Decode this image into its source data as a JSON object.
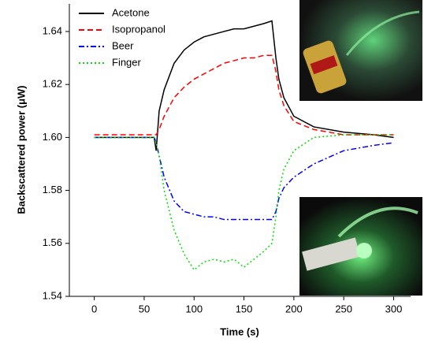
{
  "chart_data": {
    "type": "line",
    "xlabel": "Time (s)",
    "ylabel": "Backscattered power (μW)",
    "x": [
      0,
      20,
      40,
      60,
      62,
      65,
      70,
      80,
      90,
      100,
      110,
      120,
      130,
      140,
      150,
      160,
      170,
      178,
      182,
      185,
      190,
      200,
      220,
      250,
      280,
      300
    ],
    "series": [
      {
        "name": "Acetone",
        "color": "#000000",
        "style": "solid",
        "values": [
          1.6,
          1.6,
          1.6,
          1.6,
          1.595,
          1.61,
          1.618,
          1.628,
          1.633,
          1.636,
          1.638,
          1.639,
          1.64,
          1.641,
          1.641,
          1.642,
          1.643,
          1.644,
          1.63,
          1.622,
          1.615,
          1.608,
          1.604,
          1.602,
          1.601,
          1.6
        ]
      },
      {
        "name": "Isopropanol",
        "color": "#ff0000",
        "style": "dashed",
        "values": [
          1.601,
          1.601,
          1.601,
          1.601,
          1.601,
          1.603,
          1.608,
          1.615,
          1.619,
          1.622,
          1.624,
          1.626,
          1.628,
          1.629,
          1.63,
          1.63,
          1.631,
          1.631,
          1.625,
          1.618,
          1.612,
          1.606,
          1.603,
          1.601,
          1.601,
          1.601
        ]
      },
      {
        "name": "Beer",
        "color": "#0000ff",
        "style": "dashdot",
        "values": [
          1.6,
          1.6,
          1.6,
          1.6,
          1.598,
          1.593,
          1.585,
          1.576,
          1.572,
          1.571,
          1.57,
          1.57,
          1.569,
          1.569,
          1.569,
          1.569,
          1.569,
          1.569,
          1.572,
          1.577,
          1.581,
          1.585,
          1.59,
          1.595,
          1.597,
          1.598
        ]
      },
      {
        "name": "Finger",
        "color": "#00dd00",
        "style": "dotted",
        "values": [
          1.6,
          1.6,
          1.6,
          1.6,
          1.598,
          1.593,
          1.58,
          1.565,
          1.556,
          1.55,
          1.553,
          1.554,
          1.553,
          1.554,
          1.551,
          1.554,
          1.557,
          1.56,
          1.57,
          1.58,
          1.588,
          1.595,
          1.6,
          1.601,
          1.601,
          1.601
        ]
      }
    ],
    "xlim": [
      -25,
      317
    ],
    "xticks": [
      0,
      50,
      100,
      150,
      200,
      250,
      300
    ],
    "ylim": [
      1.54,
      1.6504
    ],
    "yticks": [
      1.54,
      1.56,
      1.58,
      {
        "value": 1.6,
        "label": "1.60"
      },
      1.62,
      1.64
    ],
    "legend": "upper-left"
  }
}
